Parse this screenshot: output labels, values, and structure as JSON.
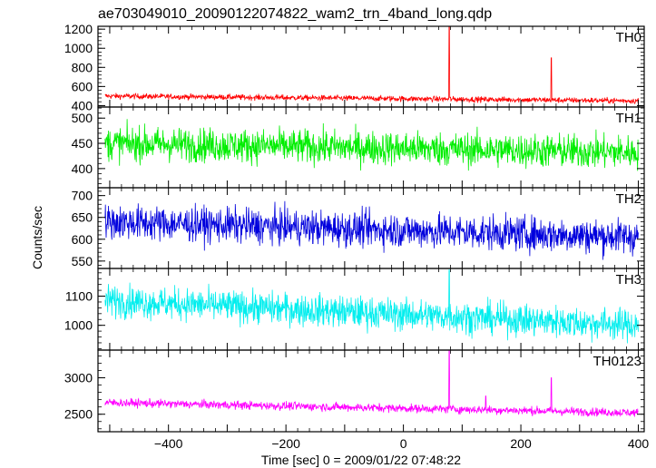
{
  "chart_data": {
    "type": "line",
    "title": "ae703049010_20090122074822_wam2_trn_4band_long.qdp",
    "xlabel": "Time [sec] 0 = 2009/01/22 07:48:22",
    "ylabel": "Counts/sec",
    "xlim": [
      -520,
      410
    ],
    "xticks": [
      -400,
      -200,
      0,
      200,
      400
    ],
    "x_start": -508,
    "x_end": 400,
    "panels": [
      {
        "name": "TH0",
        "color": "#ff0000",
        "ylim": [
          385,
          1230
        ],
        "yticks": [
          400,
          600,
          800,
          1000,
          1200
        ],
        "baseline_start": 500,
        "baseline_end": 450,
        "noise": 28,
        "spikes": [
          {
            "x": 78,
            "y": 1230
          },
          {
            "x": 252,
            "y": 900
          }
        ]
      },
      {
        "name": "TH1",
        "color": "#00ee00",
        "ylim": [
          362,
          522
        ],
        "yticks": [
          400,
          450,
          500
        ],
        "baseline_start": 450,
        "baseline_end": 432,
        "noise": 32,
        "spikes": []
      },
      {
        "name": "TH2",
        "color": "#0000dd",
        "ylim": [
          533,
          718
        ],
        "yticks": [
          550,
          600,
          650,
          700
        ],
        "baseline_start": 640,
        "baseline_end": 605,
        "noise": 38,
        "spikes": []
      },
      {
        "name": "TH3",
        "color": "#00eeee",
        "ylim": [
          915,
          1195
        ],
        "yticks": [
          1000,
          1100
        ],
        "baseline_start": 1085,
        "baseline_end": 1000,
        "noise": 52,
        "spikes": [
          {
            "x": 78,
            "y": 1190
          }
        ]
      },
      {
        "name": "TH0123",
        "color": "#ff00ff",
        "ylim": [
          2260,
          3380
        ],
        "yticks": [
          2500,
          3000
        ],
        "baseline_start": 2660,
        "baseline_end": 2520,
        "noise": 55,
        "spikes": [
          {
            "x": 78,
            "y": 3380
          },
          {
            "x": 252,
            "y": 3000
          },
          {
            "x": 140,
            "y": 2750
          }
        ]
      }
    ]
  }
}
